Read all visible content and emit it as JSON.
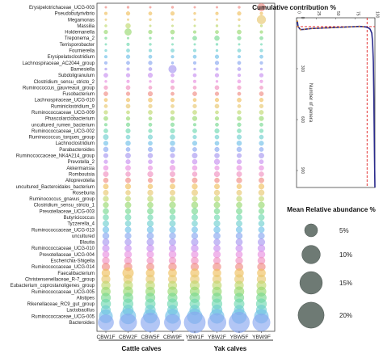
{
  "chart_data": [
    {
      "type": "bubble",
      "genera": [
        "Erysipelotrichaceae_UCG-003",
        "Pseudobutyrivibrio",
        "Megamonas",
        "Massilia",
        "Holdemanella",
        "Treponema_2",
        "Terrisporobacter",
        "Fournierella",
        "Erysipelatoclostridium",
        "Lachnospiraceae_AC2044_group",
        "Barnesiella",
        "Subdoligranulum",
        "Clostridium_sensu_stricto_2",
        "Ruminococcus_gauvreauii_group",
        "Fusobacterium",
        "Lachnospiraceae_UCG-010",
        "Ruminiclostridium_9",
        "Ruminococcaceae_UCG-009",
        "Phascolarctobacterium",
        "uncultured_rumen_bacterium",
        "Ruminococcaceae_UCG-002",
        "Ruminococcus_torques_group",
        "Lachnoclostridium",
        "Parabacteroides",
        "Ruminococcaceae_NK4A214_group",
        "Prevotella_2",
        "Akkermansia",
        "Romboutsia",
        "Alloprevotella",
        "uncultured_Bacteroidales_bacterium",
        "Roseburia",
        "Ruminococcus_gnavus_group",
        "Clostridium_sensu_stricto_1",
        "Prevotellaceae_UCG-003",
        "Butyricicoccus",
        "Tyzzerella_4",
        "Ruminococcaceae_UCG-013",
        "uncultured",
        "Blautia",
        "Ruminococcaceae_UCG-010",
        "Prevotellaceae_UCG-004",
        "Escherichia-Shigella",
        "Ruminococcaceae_UCG-014",
        "Faecalibacterium",
        "Christensenellaceae_R-7_group",
        "Eubacterium_coprostanoligenes_group",
        "Ruminococcaceae_UCG-005",
        "Alistipes",
        "Rikenellaceae_RC9_gut_group",
        "Lactobacillus",
        "Ruminococcaceae_UCG-005",
        "Bacteroides"
      ],
      "samples": [
        "CBW1F",
        "CBW2F",
        "CBW5F",
        "CBW9F",
        "YBW1F",
        "YBW2F",
        "YBW5F",
        "YBW9F"
      ],
      "groups": [
        {
          "label": "Cattle calves",
          "samples": [
            "CBW1F",
            "CBW2F",
            "CBW5F",
            "CBW9F"
          ]
        },
        {
          "label": "Yak calves",
          "samples": [
            "YBW1F",
            "YBW2F",
            "YBW5F",
            "YBW9F"
          ]
        }
      ],
      "abundance_percent": [
        [
          0.1,
          0.2,
          0.1,
          0.2,
          0.1,
          0.1,
          0.2,
          2.0
        ],
        [
          0.3,
          0.5,
          0.4,
          0.5,
          0.2,
          0.3,
          0.5,
          0.3
        ],
        [
          0.1,
          0.1,
          0.2,
          0.1,
          0.1,
          0.1,
          0.2,
          2.5
        ],
        [
          0.2,
          0.8,
          0.1,
          0.1,
          0.1,
          0.2,
          0.1,
          0.2
        ],
        [
          0.5,
          1.5,
          0.5,
          0.6,
          0.3,
          0.4,
          0.6,
          0.3
        ],
        [
          0.2,
          0.1,
          0.2,
          0.2,
          0.6,
          0.8,
          0.5,
          0.4
        ],
        [
          0.1,
          0.3,
          0.2,
          0.1,
          0.1,
          0.2,
          0.1,
          0.1
        ],
        [
          0.2,
          0.4,
          0.3,
          0.4,
          0.3,
          0.2,
          0.4,
          0.3
        ],
        [
          0.3,
          0.5,
          0.4,
          0.3,
          0.4,
          0.5,
          0.3,
          0.4
        ],
        [
          0.3,
          0.4,
          0.5,
          0.2,
          0.3,
          0.5,
          0.4,
          0.3
        ],
        [
          0.2,
          0.3,
          0.4,
          2.0,
          0.2,
          0.3,
          0.4,
          0.2
        ],
        [
          0.6,
          0.5,
          0.7,
          0.4,
          0.4,
          0.5,
          0.3,
          0.5
        ],
        [
          0.2,
          0.3,
          0.2,
          0.4,
          0.3,
          0.2,
          0.4,
          0.3
        ],
        [
          0.5,
          0.6,
          0.4,
          0.5,
          0.4,
          0.6,
          0.5,
          0.4
        ],
        [
          0.6,
          0.5,
          0.7,
          0.4,
          0.6,
          0.5,
          0.4,
          0.6
        ],
        [
          0.4,
          0.5,
          0.6,
          0.5,
          0.4,
          0.5,
          0.6,
          0.5
        ],
        [
          0.4,
          0.6,
          0.5,
          0.4,
          0.5,
          0.6,
          0.4,
          0.5
        ],
        [
          0.5,
          0.4,
          0.6,
          0.5,
          0.6,
          0.4,
          0.5,
          0.6
        ],
        [
          0.6,
          0.5,
          0.4,
          0.6,
          0.7,
          0.5,
          0.6,
          0.7
        ],
        [
          0.3,
          0.5,
          0.4,
          0.5,
          0.3,
          0.4,
          0.5,
          0.4
        ],
        [
          0.6,
          0.7,
          0.5,
          0.7,
          0.6,
          0.7,
          0.6,
          0.5
        ],
        [
          0.9,
          0.6,
          0.7,
          0.8,
          0.5,
          0.6,
          0.7,
          0.6
        ],
        [
          0.7,
          0.8,
          0.6,
          0.8,
          0.7,
          0.6,
          0.8,
          0.7
        ],
        [
          0.8,
          0.6,
          0.7,
          0.9,
          0.6,
          0.7,
          0.8,
          0.6
        ],
        [
          0.7,
          0.9,
          0.8,
          0.7,
          0.9,
          0.8,
          0.7,
          0.9
        ],
        [
          0.5,
          0.7,
          0.6,
          0.5,
          0.8,
          1.0,
          0.7,
          0.6
        ],
        [
          0.8,
          0.9,
          0.7,
          1.0,
          0.8,
          0.7,
          0.9,
          0.8
        ],
        [
          0.9,
          0.8,
          1.0,
          0.9,
          0.8,
          1.0,
          0.9,
          0.8
        ],
        [
          0.8,
          0.9,
          0.7,
          0.8,
          0.9,
          0.8,
          1.0,
          0.9
        ],
        [
          0.9,
          1.0,
          0.8,
          0.9,
          1.0,
          0.9,
          0.8,
          1.0
        ],
        [
          0.9,
          0.8,
          1.0,
          0.9,
          1.2,
          1.0,
          0.9,
          1.1
        ],
        [
          1.0,
          0.9,
          1.1,
          1.0,
          0.9,
          1.1,
          1.0,
          0.9
        ],
        [
          1.0,
          1.2,
          1.1,
          1.3,
          1.4,
          1.2,
          1.1,
          1.3
        ],
        [
          1.1,
          1.0,
          1.2,
          1.1,
          1.3,
          1.1,
          1.2,
          1.0
        ],
        [
          1.1,
          1.2,
          1.0,
          1.1,
          1.2,
          1.0,
          1.1,
          1.2
        ],
        [
          1.2,
          1.1,
          1.3,
          1.2,
          1.1,
          1.3,
          1.2,
          1.1
        ],
        [
          1.3,
          1.2,
          1.4,
          1.3,
          1.2,
          1.4,
          1.3,
          1.2
        ],
        [
          1.4,
          1.3,
          1.5,
          1.4,
          1.3,
          1.5,
          1.4,
          1.3
        ],
        [
          1.5,
          1.4,
          1.6,
          1.5,
          1.6,
          1.4,
          1.5,
          1.6
        ],
        [
          1.6,
          1.5,
          1.7,
          1.6,
          1.7,
          1.5,
          1.6,
          1.7
        ],
        [
          1.5,
          1.7,
          1.6,
          1.8,
          1.6,
          1.7,
          1.5,
          1.8
        ],
        [
          1.7,
          1.8,
          1.6,
          1.7,
          1.8,
          1.6,
          1.7,
          1.8
        ],
        [
          2.0,
          2.2,
          1.9,
          2.1,
          2.0,
          2.2,
          1.9,
          2.1
        ],
        [
          2.2,
          4.0,
          2.4,
          2.3,
          2.5,
          2.2,
          2.6,
          2.3
        ],
        [
          2.5,
          2.8,
          2.6,
          2.4,
          2.7,
          2.5,
          2.9,
          2.6
        ],
        [
          2.6,
          2.9,
          2.7,
          2.5,
          3.0,
          2.8,
          2.6,
          2.9
        ],
        [
          2.8,
          3.2,
          2.9,
          3.1,
          3.0,
          2.9,
          3.2,
          3.0
        ],
        [
          3.0,
          3.3,
          3.1,
          3.0,
          3.4,
          3.2,
          3.0,
          3.3
        ],
        [
          3.2,
          3.5,
          3.4,
          3.6,
          3.3,
          3.5,
          3.4,
          3.6
        ],
        [
          3.0,
          3.8,
          3.6,
          3.4,
          3.5,
          3.7,
          3.3,
          3.6
        ],
        [
          6.0,
          8.0,
          6.5,
          7.0,
          7.5,
          6.8,
          7.2,
          6.6
        ],
        [
          8.0,
          10.0,
          12.0,
          9.0,
          15.0,
          11.0,
          14.0,
          10.0
        ]
      ],
      "colors": [
        "#f08c84",
        "#f0c060",
        "#e8c870",
        "#c0d870",
        "#98d870",
        "#78d890",
        "#70d8b0",
        "#70d0d0",
        "#70c0e8",
        "#88a8f0",
        "#a898f0",
        "#c890f0",
        "#e890e0",
        "#f090c0"
      ]
    },
    {
      "type": "line",
      "title": "Cumulative contribution  %",
      "xlabel": "",
      "ylabel": "Number of genera",
      "x_ticks": [
        "0",
        "25",
        "50",
        "75",
        "100"
      ],
      "y_ticks": [
        "0",
        "300",
        "600",
        "900"
      ],
      "xlim": [
        0,
        100
      ],
      "ylim": [
        0,
        1000
      ],
      "reference_lines": {
        "x": 90,
        "y": 52
      },
      "series": [
        {
          "values": [
            [
              1,
              20
            ],
            [
              2,
              52
            ],
            [
              5,
              70
            ],
            [
              10,
              68
            ],
            [
              15,
              65
            ],
            [
              20,
              63
            ],
            [
              25,
              62
            ],
            [
              30,
              61
            ],
            [
              35,
              60
            ],
            [
              40,
              59
            ],
            [
              45,
              58
            ],
            [
              50,
              57
            ],
            [
              55,
              56
            ],
            [
              60,
              55
            ],
            [
              65,
              54
            ],
            [
              70,
              53
            ],
            [
              75,
              52
            ],
            [
              80,
              51
            ],
            [
              85,
              52
            ],
            [
              88,
              54
            ],
            [
              90,
              56
            ],
            [
              92,
              60
            ],
            [
              94,
              68
            ],
            [
              96,
              90
            ],
            [
              97,
              140
            ],
            [
              98,
              260
            ],
            [
              98.5,
              420
            ],
            [
              99,
              620
            ],
            [
              99.5,
              820
            ],
            [
              100,
              1000
            ]
          ]
        }
      ]
    }
  ],
  "legend": {
    "title": "Mean Relative abundance %",
    "items": [
      {
        "label": "5%",
        "value": 5
      },
      {
        "label": "10%",
        "value": 10
      },
      {
        "label": "15%",
        "value": 15
      },
      {
        "label": "20%",
        "value": 20
      }
    ],
    "color": "#6e7a74"
  }
}
